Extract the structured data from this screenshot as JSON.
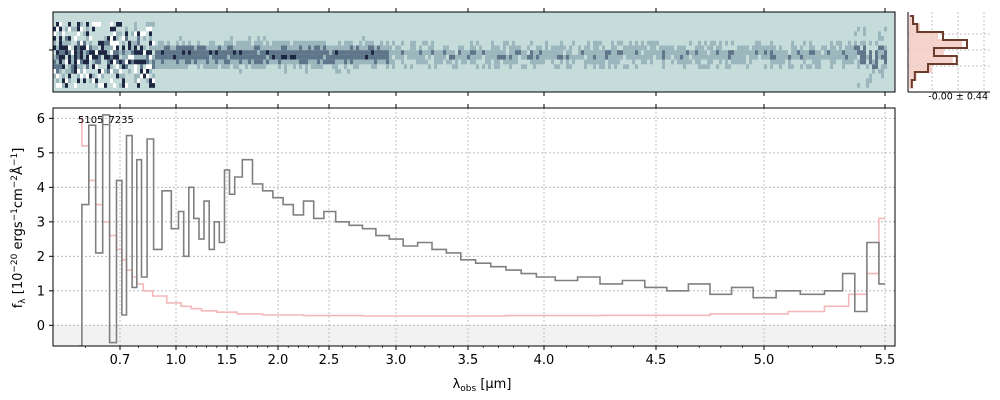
{
  "chart_data": [
    {
      "type": "heatmap",
      "panel": "2D spectrum",
      "colormap": [
        "#c5dcdb",
        "#9bb6bc",
        "#5f7589",
        "#1d2742"
      ],
      "x_ticks_minor_only": true
    },
    {
      "type": "line",
      "panel": "profile",
      "annotation": "-0.00 ± 0.44",
      "series": [
        {
          "color": "#6b3b2c",
          "values": [
            0.05,
            0.12,
            0.55,
            0.95,
            0.4,
            0.78,
            0.3,
            0.08,
            0.03
          ]
        },
        {
          "color": "#f3c9c0",
          "values": [
            0.06,
            0.15,
            0.45,
            0.85,
            0.55,
            0.7,
            0.35,
            0.1,
            0.04
          ]
        }
      ]
    },
    {
      "type": "line",
      "panel": "1D spectrum",
      "title": "",
      "object_label": "5105_7235",
      "xlabel": "λobs [μm]",
      "xlabel_parts": {
        "symbol": "λ",
        "sub": "obs",
        "unit": " [μm]"
      },
      "ylabel_parts": {
        "f": "f",
        "sub": "λ",
        "a": " [10",
        "e1": "−20",
        "b": " ergs",
        "e2": "−1",
        "c": "cm",
        "e3": "−2",
        "d": "Å",
        "e4": "−1",
        "e": "]"
      },
      "x_scale": "nonlinear (resolution-spaced)",
      "xlim": [
        0.55,
        5.52
      ],
      "ylim": [
        -0.6,
        6.3
      ],
      "x_ticks": [
        0.7,
        1.0,
        1.5,
        2.0,
        2.5,
        3.0,
        3.5,
        4.0,
        4.5,
        5.0,
        5.5
      ],
      "x_tick_labels": [
        "0.7",
        "1.0",
        "1.5",
        "2.0",
        "2.5",
        "3.0",
        "3.5",
        "4.0",
        "4.5",
        "5.0",
        "5.5"
      ],
      "y_ticks": [
        0,
        1,
        2,
        3,
        4,
        5,
        6
      ],
      "grid": true,
      "series": [
        {
          "role": "flux",
          "color": "#808080",
          "style": "steps",
          "x": [
            0.58,
            0.6,
            0.62,
            0.64,
            0.66,
            0.68,
            0.7,
            0.72,
            0.75,
            0.78,
            0.8,
            0.83,
            0.86,
            0.9,
            0.95,
            1.0,
            1.05,
            1.1,
            1.15,
            1.2,
            1.25,
            1.3,
            1.35,
            1.4,
            1.45,
            1.5,
            1.55,
            1.6,
            1.7,
            1.8,
            1.9,
            2.0,
            2.1,
            2.2,
            2.3,
            2.4,
            2.5,
            2.6,
            2.7,
            2.8,
            2.9,
            3.0,
            3.1,
            3.2,
            3.3,
            3.4,
            3.5,
            3.6,
            3.7,
            3.8,
            3.9,
            4.0,
            4.1,
            4.2,
            4.3,
            4.4,
            4.5,
            4.6,
            4.7,
            4.8,
            4.9,
            5.0,
            5.1,
            5.2,
            5.3,
            5.35,
            5.4,
            5.45,
            5.5
          ],
          "y": [
            -0.6,
            3.5,
            5.8,
            2.1,
            6.1,
            -0.5,
            4.2,
            0.3,
            5.5,
            1.1,
            4.8,
            1.4,
            5.4,
            2.2,
            3.9,
            2.8,
            3.3,
            2.0,
            4.0,
            3.1,
            2.5,
            3.6,
            2.2,
            3.0,
            2.4,
            4.5,
            3.8,
            4.3,
            4.8,
            4.1,
            3.9,
            3.7,
            3.5,
            3.2,
            3.6,
            3.1,
            3.3,
            3.0,
            2.9,
            2.8,
            2.6,
            2.5,
            2.3,
            2.4,
            2.2,
            2.1,
            1.9,
            1.8,
            1.7,
            1.6,
            1.5,
            1.4,
            1.3,
            1.4,
            1.2,
            1.3,
            1.1,
            1.0,
            1.2,
            0.9,
            1.1,
            0.8,
            1.0,
            0.9,
            1.0,
            1.5,
            0.4,
            2.4,
            1.2
          ]
        },
        {
          "role": "uncertainty",
          "color": "#f4b8b8",
          "style": "steps",
          "x": [
            0.58,
            0.6,
            0.62,
            0.64,
            0.66,
            0.68,
            0.7,
            0.72,
            0.75,
            0.78,
            0.8,
            0.85,
            0.9,
            1.0,
            1.1,
            1.2,
            1.3,
            1.5,
            1.7,
            2.0,
            2.5,
            3.0,
            3.5,
            4.0,
            4.5,
            5.0,
            5.2,
            5.3,
            5.4,
            5.45,
            5.5
          ],
          "y": [
            6.0,
            5.2,
            4.2,
            3.5,
            3.0,
            2.6,
            2.2,
            1.9,
            1.6,
            1.4,
            1.2,
            1.0,
            0.85,
            0.65,
            0.55,
            0.48,
            0.42,
            0.38,
            0.33,
            0.3,
            0.28,
            0.27,
            0.27,
            0.28,
            0.29,
            0.33,
            0.4,
            0.55,
            0.9,
            1.5,
            3.1
          ]
        }
      ]
    }
  ]
}
